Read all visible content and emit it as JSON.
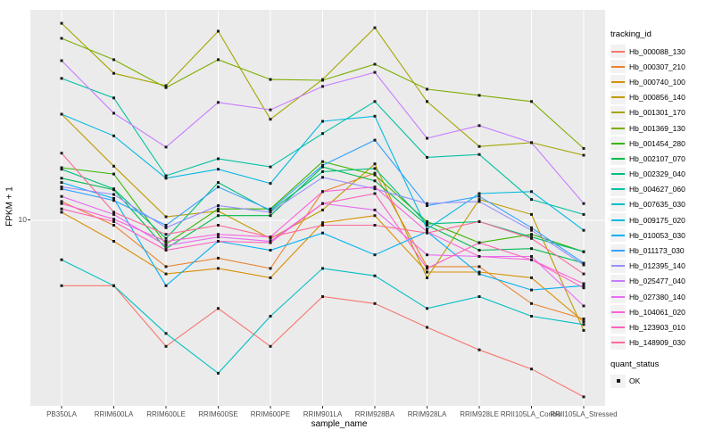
{
  "chart_data": {
    "type": "line",
    "title": "",
    "xlabel": "sample_name",
    "ylabel": "FPKM + 1",
    "y_scale": "log10",
    "y_tick_labels": [
      "10"
    ],
    "ylim_log10": [
      0.33,
      1.76
    ],
    "grid": "major-on",
    "legend_position": "right",
    "colors": {
      "panel_bg": "#EBEBEB",
      "grid": "#FFFFFF",
      "points": "#1A1A1A",
      "axis_text": "#4D4D4D",
      "tick_mark": "#333333"
    },
    "categories": [
      "PB350LA",
      "RRIM600LA",
      "RRIM600LE",
      "RRIM600SE",
      "RRIM600PE",
      "RRIM901LA",
      "RRIM928BA",
      "RRIM928LA",
      "RRIM928LE",
      "RRII105LA_Control",
      "RRII105LA_Stressed"
    ],
    "series": [
      {
        "name": "Hb_000088_130",
        "color": "#F8766D",
        "values": [
          5.8,
          5.8,
          3.5,
          4.8,
          3.5,
          5.3,
          5.0,
          4.1,
          3.4,
          2.9,
          2.3
        ]
      },
      {
        "name": "Hb_000307_210",
        "color": "#EA8331",
        "values": [
          11.7,
          9.6,
          6.8,
          7.3,
          6.7,
          12.7,
          14.8,
          6.8,
          6.8,
          5.0,
          4.4
        ]
      },
      {
        "name": "Hb_000740_100",
        "color": "#D89000",
        "values": [
          10.7,
          8.4,
          6.4,
          6.7,
          6.2,
          9.8,
          10.4,
          6.5,
          6.5,
          6.2,
          4.3
        ]
      },
      {
        "name": "Hb_000856_140",
        "color": "#C09B00",
        "values": [
          24.2,
          15.7,
          10.3,
          10.8,
          8.6,
          10.9,
          16.0,
          6.2,
          11.9,
          10.5,
          4.0
        ]
      },
      {
        "name": "Hb_001301_170",
        "color": "#A3A500",
        "values": [
          51.6,
          34.0,
          30.7,
          48.3,
          23.2,
          32.3,
          49.7,
          26.9,
          18.5,
          19.1,
          17.2
        ]
      },
      {
        "name": "Hb_001369_130",
        "color": "#7CAE00",
        "values": [
          45.5,
          38.1,
          30.2,
          38.1,
          32.3,
          32.1,
          36.7,
          29.8,
          28.3,
          26.9,
          18.2
        ]
      },
      {
        "name": "Hb_001454_280",
        "color": "#39B600",
        "values": [
          15.5,
          14.7,
          8.2,
          11.0,
          11.0,
          16.3,
          14.6,
          9.9,
          8.3,
          8.9,
          7.7
        ]
      },
      {
        "name": "Hb_002107_070",
        "color": "#00BB4E",
        "values": [
          14.2,
          12.9,
          7.9,
          10.4,
          10.4,
          15.6,
          13.9,
          9.6,
          7.8,
          7.9,
          7.0
        ]
      },
      {
        "name": "Hb_002329_040",
        "color": "#00BF7D",
        "values": [
          15.3,
          13.0,
          8.6,
          13.7,
          10.8,
          15.0,
          15.4,
          9.7,
          9.9,
          8.7,
          7.7
        ]
      },
      {
        "name": "Hb_004627_060",
        "color": "#00C1A3",
        "values": [
          32.6,
          27.7,
          14.5,
          16.7,
          15.6,
          20.6,
          26.9,
          16.9,
          17.3,
          11.9,
          10.5
        ]
      },
      {
        "name": "Hb_007635_030",
        "color": "#00BFC4",
        "values": [
          7.2,
          5.8,
          3.9,
          2.8,
          4.5,
          6.7,
          6.3,
          4.8,
          5.3,
          4.5,
          4.2
        ]
      },
      {
        "name": "Hb_009175_020",
        "color": "#00BAE0",
        "values": [
          24.2,
          20.2,
          14.2,
          15.3,
          13.6,
          22.8,
          23.8,
          9.3,
          12.5,
          12.7,
          9.2
        ]
      },
      {
        "name": "Hb_010053_030",
        "color": "#00B0F6",
        "values": [
          13.7,
          12.0,
          5.8,
          8.4,
          7.8,
          9.0,
          7.5,
          9.1,
          6.4,
          5.6,
          5.8
        ]
      },
      {
        "name": "Hb_011173_030",
        "color": "#35A2FF",
        "values": [
          13.0,
          11.8,
          9.6,
          13.2,
          10.9,
          15.8,
          19.5,
          11.3,
          12.2,
          9.4,
          7.0
        ]
      },
      {
        "name": "Hb_012395_140",
        "color": "#9590FF",
        "values": [
          13.2,
          12.4,
          9.4,
          11.3,
          10.7,
          14.3,
          13.0,
          11.5,
          11.7,
          9.2,
          6.9
        ]
      },
      {
        "name": "Hb_025477_040",
        "color": "#C77CFF",
        "values": [
          37.8,
          24.4,
          18.4,
          26.7,
          25.1,
          30.5,
          34.3,
          19.8,
          22.0,
          19.1,
          11.5
        ]
      },
      {
        "name": "Hb_027380_140",
        "color": "#E76BF3",
        "values": [
          12.2,
          10.5,
          8.1,
          8.7,
          8.4,
          11.5,
          10.9,
          7.5,
          7.4,
          7.4,
          4.9
        ]
      },
      {
        "name": "Hb_104061_020",
        "color": "#FA62DB",
        "values": [
          11.5,
          10.1,
          8.4,
          8.9,
          8.7,
          12.7,
          13.2,
          9.1,
          7.4,
          7.2,
          5.9
        ]
      },
      {
        "name": "Hb_123903_010",
        "color": "#FF62BC",
        "values": [
          11.0,
          9.9,
          7.8,
          8.4,
          8.3,
          11.5,
          12.5,
          6.7,
          8.3,
          7.2,
          5.7
        ]
      },
      {
        "name": "Hb_148909_030",
        "color": "#FF6A98",
        "values": [
          17.5,
          10.7,
          8.9,
          9.6,
          8.7,
          9.6,
          9.6,
          9.0,
          9.9,
          8.6,
          6.4
        ]
      }
    ],
    "legend": {
      "color_title": "tracking_id",
      "shape_title": "quant_status",
      "shape_items": [
        {
          "label": "OK"
        }
      ]
    }
  }
}
